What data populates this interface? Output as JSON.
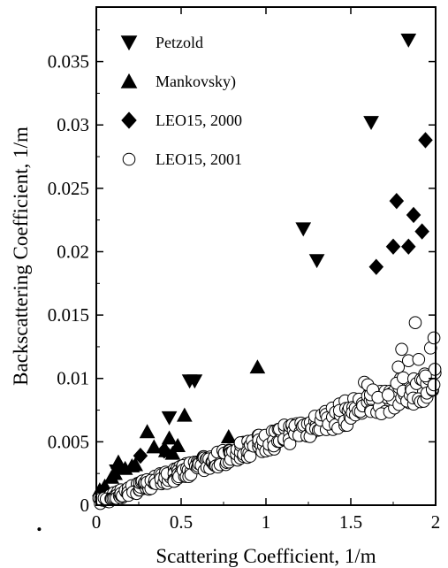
{
  "chart_data": {
    "type": "scatter",
    "title": "",
    "xlabel": "Scattering Coefficient, 1/m",
    "ylabel": "Backscattering Coefficient, 1/m",
    "xlim": [
      0,
      2
    ],
    "ylim": [
      0,
      0.0393
    ],
    "x_ticks": [
      0,
      0.5,
      1,
      1.5,
      2
    ],
    "x_tick_labels": [
      "0",
      "0.5",
      "1",
      "1.5",
      "2"
    ],
    "y_ticks": [
      0,
      0.005,
      0.01,
      0.015,
      0.02,
      0.025,
      0.03,
      0.035
    ],
    "y_tick_labels": [
      "0",
      "0.005",
      "0.01",
      "0.015",
      "0.02",
      "0.025",
      "0.03",
      "0.035"
    ],
    "grid": false,
    "legend_position": "top-left",
    "series": [
      {
        "name": "Petzold",
        "marker": "triangle-down",
        "fill": "#000000",
        "points": [
          [
            0.12,
            0.0027
          ],
          [
            0.43,
            0.0069
          ],
          [
            0.55,
            0.0098
          ],
          [
            0.58,
            0.0098
          ],
          [
            1.22,
            0.0218
          ],
          [
            1.3,
            0.0193
          ],
          [
            1.62,
            0.0302
          ],
          [
            1.84,
            0.0367
          ]
        ]
      },
      {
        "name": "Mankovsky)",
        "marker": "triangle-up",
        "fill": "#000000",
        "points": [
          [
            0.02,
            0.0012
          ],
          [
            0.05,
            0.0015
          ],
          [
            0.09,
            0.0022
          ],
          [
            0.11,
            0.0025
          ],
          [
            0.13,
            0.0034
          ],
          [
            0.17,
            0.0029
          ],
          [
            0.21,
            0.0031
          ],
          [
            0.23,
            0.0032
          ],
          [
            0.3,
            0.0058
          ],
          [
            0.34,
            0.0046
          ],
          [
            0.41,
            0.0043
          ],
          [
            0.43,
            0.0053
          ],
          [
            0.45,
            0.0041
          ],
          [
            0.48,
            0.0047
          ],
          [
            0.52,
            0.0071
          ],
          [
            0.78,
            0.0054
          ],
          [
            0.95,
            0.0109
          ]
        ]
      },
      {
        "name": "LEO15, 2000",
        "marker": "diamond",
        "fill": "#000000",
        "points": [
          [
            0.26,
            0.0039
          ],
          [
            0.4,
            0.0043
          ],
          [
            1.65,
            0.0188
          ],
          [
            1.75,
            0.0204
          ],
          [
            1.77,
            0.024
          ],
          [
            1.84,
            0.0204
          ],
          [
            1.87,
            0.0229
          ],
          [
            1.92,
            0.0216
          ],
          [
            1.94,
            0.0288
          ]
        ]
      },
      {
        "name": "LEO15, 2001",
        "marker": "circle-open",
        "fill": "#ffffff",
        "trend": {
          "intercept": 0.0002,
          "slope": 0.0048,
          "x_points": [
            0.03,
            0.05,
            0.07,
            0.09,
            0.1,
            0.12,
            0.14,
            0.15,
            0.17,
            0.19,
            0.2,
            0.22,
            0.23,
            0.25,
            0.27,
            0.28,
            0.3,
            0.31,
            0.33,
            0.35,
            0.36,
            0.38,
            0.4,
            0.41,
            0.43,
            0.45,
            0.47,
            0.49,
            0.5,
            0.52,
            0.54,
            0.56,
            0.58,
            0.6,
            0.62,
            0.64,
            0.66,
            0.68,
            0.7,
            0.72,
            0.74,
            0.76,
            0.78,
            0.8,
            0.82,
            0.84,
            0.86,
            0.88,
            0.9,
            0.92,
            0.95,
            0.97,
            0.99,
            1.01,
            1.04,
            1.06,
            1.08,
            1.1,
            1.13,
            1.15,
            1.17,
            1.2,
            1.22,
            1.25,
            1.27,
            1.3,
            1.32,
            1.35,
            1.38,
            1.4,
            1.43,
            1.46,
            1.48,
            1.51,
            1.54,
            1.57,
            1.6,
            1.63,
            1.66,
            1.69,
            1.72,
            1.75,
            1.78,
            1.81,
            1.84,
            1.87,
            1.9,
            1.93,
            1.96,
            1.99
          ]
        },
        "points": [
          [
            1.58,
            0.0097
          ],
          [
            1.6,
            0.0095
          ],
          [
            1.63,
            0.0091
          ],
          [
            1.66,
            0.0085
          ],
          [
            1.72,
            0.0087
          ],
          [
            1.78,
            0.0109
          ],
          [
            1.8,
            0.0123
          ],
          [
            1.84,
            0.0114
          ],
          [
            1.88,
            0.0144
          ],
          [
            1.9,
            0.0115
          ],
          [
            1.94,
            0.0102
          ],
          [
            1.97,
            0.0124
          ],
          [
            1.99,
            0.0132
          ],
          [
            1.99,
            0.0095
          ]
        ]
      }
    ],
    "stray_mark": [
      -0.05,
      -0.0005
    ]
  }
}
